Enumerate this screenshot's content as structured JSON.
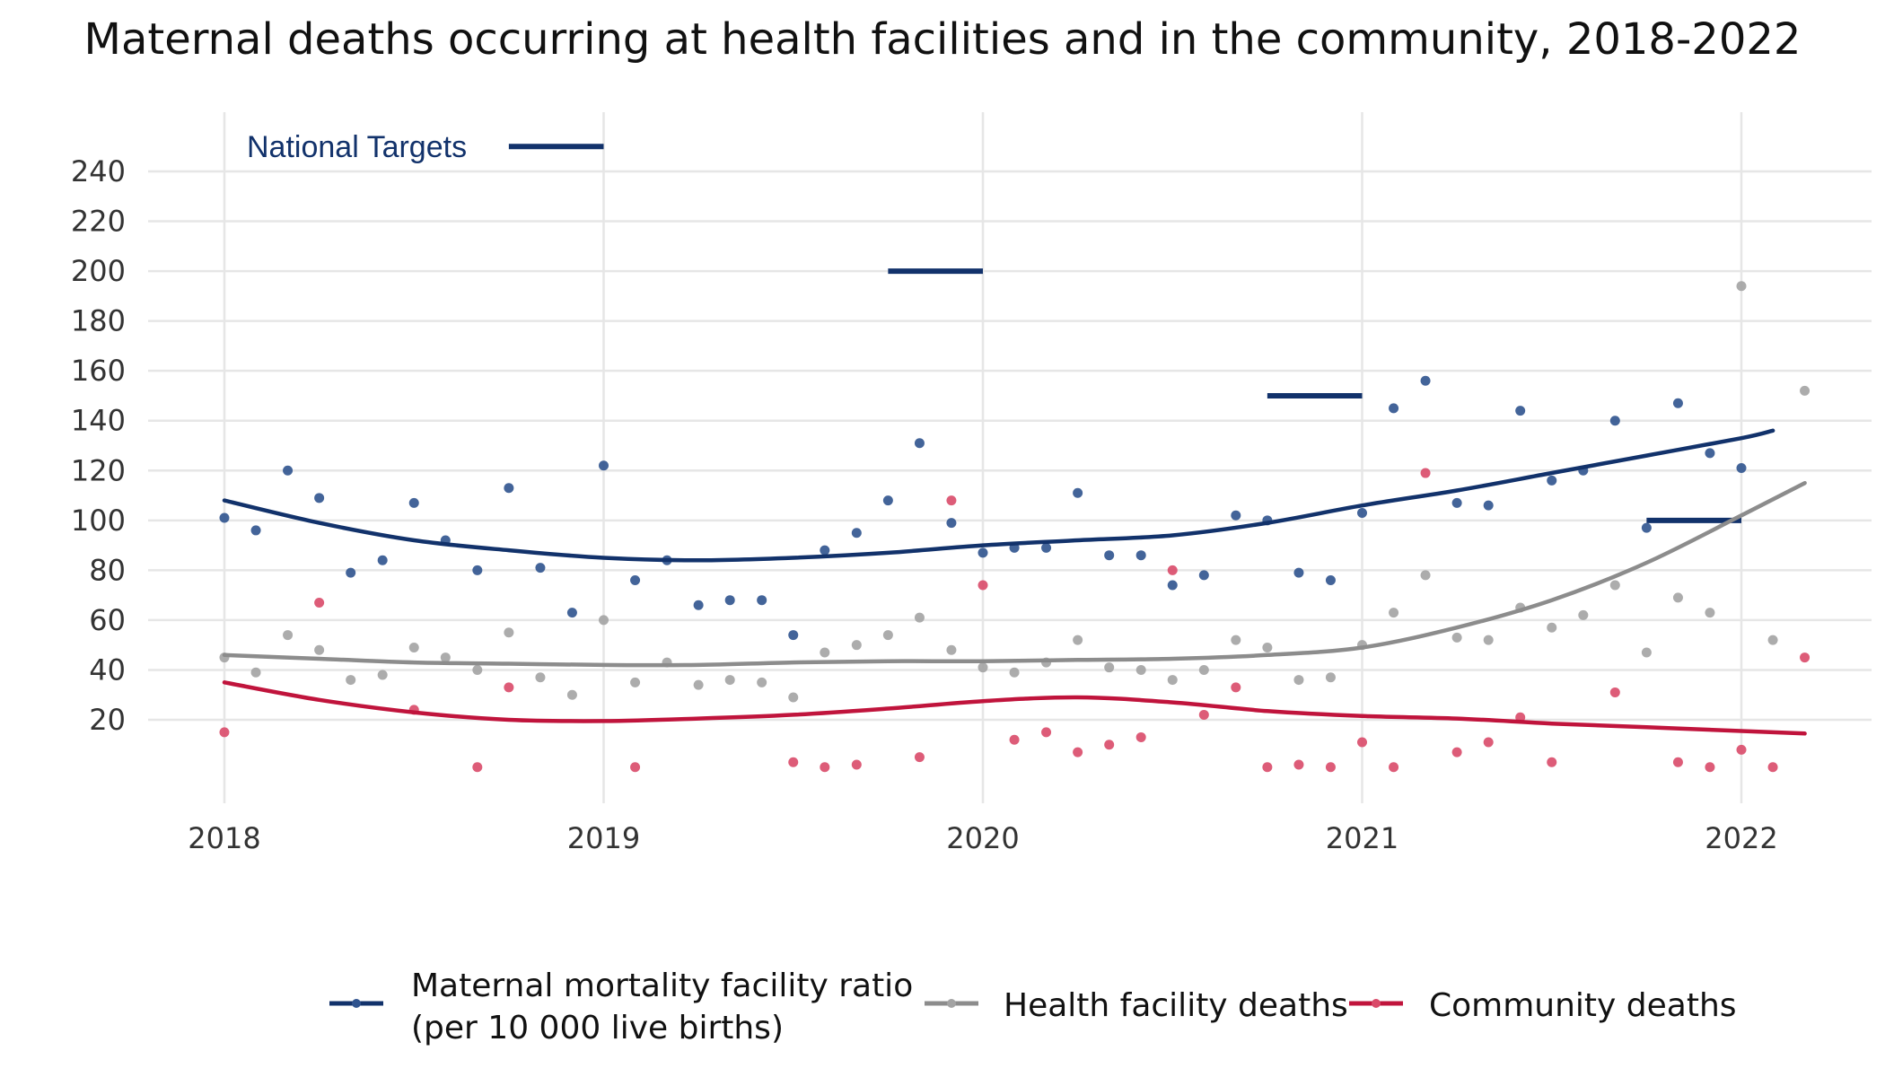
{
  "chart_data": {
    "type": "line",
    "title": "Maternal deaths occurring at health facilities and in the community, 2018-2022",
    "xlabel": "",
    "ylabel": "",
    "xlim": [
      2017.8,
      2022.35
    ],
    "ylim": [
      -30,
      255
    ],
    "x_ticks": [
      2018,
      2019,
      2020,
      2021,
      2022
    ],
    "x_tick_labels": [
      "2018",
      "2019",
      "2020",
      "2021",
      "2022"
    ],
    "y_ticks": [
      20,
      40,
      60,
      80,
      100,
      120,
      140,
      160,
      180,
      200,
      220,
      240
    ],
    "y_tick_labels": [
      "20",
      "40",
      "60",
      "80",
      "100",
      "120",
      "140",
      "160",
      "180",
      "200",
      "220",
      "240"
    ],
    "grid": true,
    "legend_position": "bottom",
    "national_targets": {
      "label": "National Targets",
      "color": "#12326b",
      "segments": [
        {
          "x_start": 2018.75,
          "x_end": 2019.0,
          "y": 250
        },
        {
          "x_start": 2019.75,
          "x_end": 2020.0,
          "y": 200
        },
        {
          "x_start": 2020.75,
          "x_end": 2021.0,
          "y": 150
        },
        {
          "x_start": 2021.75,
          "x_end": 2022.0,
          "y": 100
        }
      ]
    },
    "series": [
      {
        "name": "Maternal mortality facility ratio",
        "name_line2": "(per 10 000 live births)",
        "color": "#12326b",
        "point_color": "#2f538e",
        "points": [
          [
            2018.0,
            101
          ],
          [
            2018.083,
            96
          ],
          [
            2018.167,
            120
          ],
          [
            2018.25,
            109
          ],
          [
            2018.333,
            79
          ],
          [
            2018.417,
            84
          ],
          [
            2018.5,
            107
          ],
          [
            2018.583,
            92
          ],
          [
            2018.667,
            80
          ],
          [
            2018.75,
            113
          ],
          [
            2018.833,
            81
          ],
          [
            2018.917,
            63
          ],
          [
            2019.0,
            122
          ],
          [
            2019.083,
            76
          ],
          [
            2019.167,
            84
          ],
          [
            2019.25,
            66
          ],
          [
            2019.333,
            68
          ],
          [
            2019.417,
            68
          ],
          [
            2019.5,
            54
          ],
          [
            2019.583,
            88
          ],
          [
            2019.667,
            95
          ],
          [
            2019.75,
            108
          ],
          [
            2019.833,
            131
          ],
          [
            2019.917,
            99
          ],
          [
            2020.0,
            87
          ],
          [
            2020.083,
            89
          ],
          [
            2020.167,
            89
          ],
          [
            2020.25,
            111
          ],
          [
            2020.333,
            86
          ],
          [
            2020.417,
            86
          ],
          [
            2020.5,
            74
          ],
          [
            2020.583,
            78
          ],
          [
            2020.667,
            102
          ],
          [
            2020.75,
            100
          ],
          [
            2020.833,
            79
          ],
          [
            2020.917,
            76
          ],
          [
            2021.0,
            103
          ],
          [
            2021.083,
            145
          ],
          [
            2021.167,
            156
          ],
          [
            2021.25,
            107
          ],
          [
            2021.333,
            106
          ],
          [
            2021.417,
            144
          ],
          [
            2021.5,
            116
          ],
          [
            2021.583,
            120
          ],
          [
            2021.667,
            140
          ],
          [
            2021.75,
            97
          ],
          [
            2021.833,
            147
          ],
          [
            2021.917,
            127
          ],
          [
            2022.0,
            121
          ]
        ],
        "trend": [
          [
            2018.0,
            108
          ],
          [
            2018.25,
            99
          ],
          [
            2018.5,
            92
          ],
          [
            2018.75,
            88
          ],
          [
            2019.0,
            85
          ],
          [
            2019.25,
            84
          ],
          [
            2019.5,
            85
          ],
          [
            2019.75,
            87
          ],
          [
            2020.0,
            90
          ],
          [
            2020.25,
            92
          ],
          [
            2020.5,
            94
          ],
          [
            2020.75,
            99
          ],
          [
            2021.0,
            106
          ],
          [
            2021.25,
            112
          ],
          [
            2021.5,
            119
          ],
          [
            2021.75,
            126
          ],
          [
            2022.0,
            133
          ],
          [
            2022.083,
            136
          ]
        ]
      },
      {
        "name": "Health facility deaths",
        "color": "#8c8c8c",
        "point_color": "#a3a3a3",
        "points": [
          [
            2018.0,
            45
          ],
          [
            2018.083,
            39
          ],
          [
            2018.167,
            54
          ],
          [
            2018.25,
            48
          ],
          [
            2018.333,
            36
          ],
          [
            2018.417,
            38
          ],
          [
            2018.5,
            49
          ],
          [
            2018.583,
            45
          ],
          [
            2018.667,
            40
          ],
          [
            2018.75,
            55
          ],
          [
            2018.833,
            37
          ],
          [
            2018.917,
            30
          ],
          [
            2019.0,
            60
          ],
          [
            2019.083,
            35
          ],
          [
            2019.167,
            43
          ],
          [
            2019.25,
            34
          ],
          [
            2019.333,
            36
          ],
          [
            2019.417,
            35
          ],
          [
            2019.5,
            29
          ],
          [
            2019.583,
            47
          ],
          [
            2019.667,
            50
          ],
          [
            2019.75,
            54
          ],
          [
            2019.833,
            61
          ],
          [
            2019.917,
            48
          ],
          [
            2020.0,
            41
          ],
          [
            2020.083,
            39
          ],
          [
            2020.167,
            43
          ],
          [
            2020.25,
            52
          ],
          [
            2020.333,
            41
          ],
          [
            2020.417,
            40
          ],
          [
            2020.5,
            36
          ],
          [
            2020.583,
            40
          ],
          [
            2020.667,
            52
          ],
          [
            2020.75,
            49
          ],
          [
            2020.833,
            36
          ],
          [
            2020.917,
            37
          ],
          [
            2021.0,
            50
          ],
          [
            2021.083,
            63
          ],
          [
            2021.167,
            78
          ],
          [
            2021.25,
            53
          ],
          [
            2021.333,
            52
          ],
          [
            2021.417,
            65
          ],
          [
            2021.5,
            57
          ],
          [
            2021.583,
            62
          ],
          [
            2021.667,
            74
          ],
          [
            2021.75,
            47
          ],
          [
            2021.833,
            69
          ],
          [
            2021.917,
            63
          ],
          [
            2022.0,
            194
          ],
          [
            2022.083,
            52
          ],
          [
            2022.167,
            152
          ]
        ],
        "trend": [
          [
            2018.0,
            46
          ],
          [
            2018.25,
            44.5
          ],
          [
            2018.5,
            43
          ],
          [
            2018.75,
            42.5
          ],
          [
            2019.0,
            42
          ],
          [
            2019.25,
            42
          ],
          [
            2019.5,
            43
          ],
          [
            2019.75,
            43.5
          ],
          [
            2020.0,
            43.5
          ],
          [
            2020.25,
            44
          ],
          [
            2020.5,
            44.5
          ],
          [
            2020.75,
            46
          ],
          [
            2021.0,
            49
          ],
          [
            2021.25,
            57
          ],
          [
            2021.5,
            68
          ],
          [
            2021.75,
            83
          ],
          [
            2022.0,
            102
          ],
          [
            2022.167,
            115
          ]
        ]
      },
      {
        "name": "Community deaths",
        "color": "#c0143c",
        "point_color": "#d94a69",
        "points": [
          [
            2018.0,
            15
          ],
          [
            2018.25,
            67
          ],
          [
            2018.5,
            24
          ],
          [
            2018.667,
            1
          ],
          [
            2018.75,
            33
          ],
          [
            2019.083,
            1
          ],
          [
            2019.5,
            3
          ],
          [
            2019.583,
            1
          ],
          [
            2019.667,
            2
          ],
          [
            2019.833,
            5
          ],
          [
            2019.917,
            108
          ],
          [
            2020.0,
            74
          ],
          [
            2020.083,
            12
          ],
          [
            2020.167,
            15
          ],
          [
            2020.25,
            7
          ],
          [
            2020.333,
            10
          ],
          [
            2020.417,
            13
          ],
          [
            2020.5,
            80
          ],
          [
            2020.583,
            22
          ],
          [
            2020.667,
            33
          ],
          [
            2020.75,
            1
          ],
          [
            2020.833,
            2
          ],
          [
            2020.917,
            1
          ],
          [
            2021.0,
            11
          ],
          [
            2021.083,
            1
          ],
          [
            2021.167,
            119
          ],
          [
            2021.25,
            7
          ],
          [
            2021.333,
            11
          ],
          [
            2021.417,
            21
          ],
          [
            2021.5,
            3
          ],
          [
            2021.667,
            31
          ],
          [
            2021.833,
            3
          ],
          [
            2021.917,
            1
          ],
          [
            2022.0,
            8
          ],
          [
            2022.083,
            1
          ],
          [
            2022.167,
            45
          ]
        ],
        "trend": [
          [
            2018.0,
            35
          ],
          [
            2018.25,
            28
          ],
          [
            2018.5,
            23
          ],
          [
            2018.75,
            20
          ],
          [
            2019.0,
            19.5
          ],
          [
            2019.25,
            20.5
          ],
          [
            2019.5,
            22
          ],
          [
            2019.75,
            24.5
          ],
          [
            2020.0,
            27.5
          ],
          [
            2020.25,
            29
          ],
          [
            2020.5,
            27
          ],
          [
            2020.75,
            23.5
          ],
          [
            2021.0,
            21.5
          ],
          [
            2021.25,
            20.5
          ],
          [
            2021.5,
            18.5
          ],
          [
            2021.75,
            17
          ],
          [
            2022.0,
            15.5
          ],
          [
            2022.167,
            14.5
          ]
        ]
      }
    ]
  }
}
